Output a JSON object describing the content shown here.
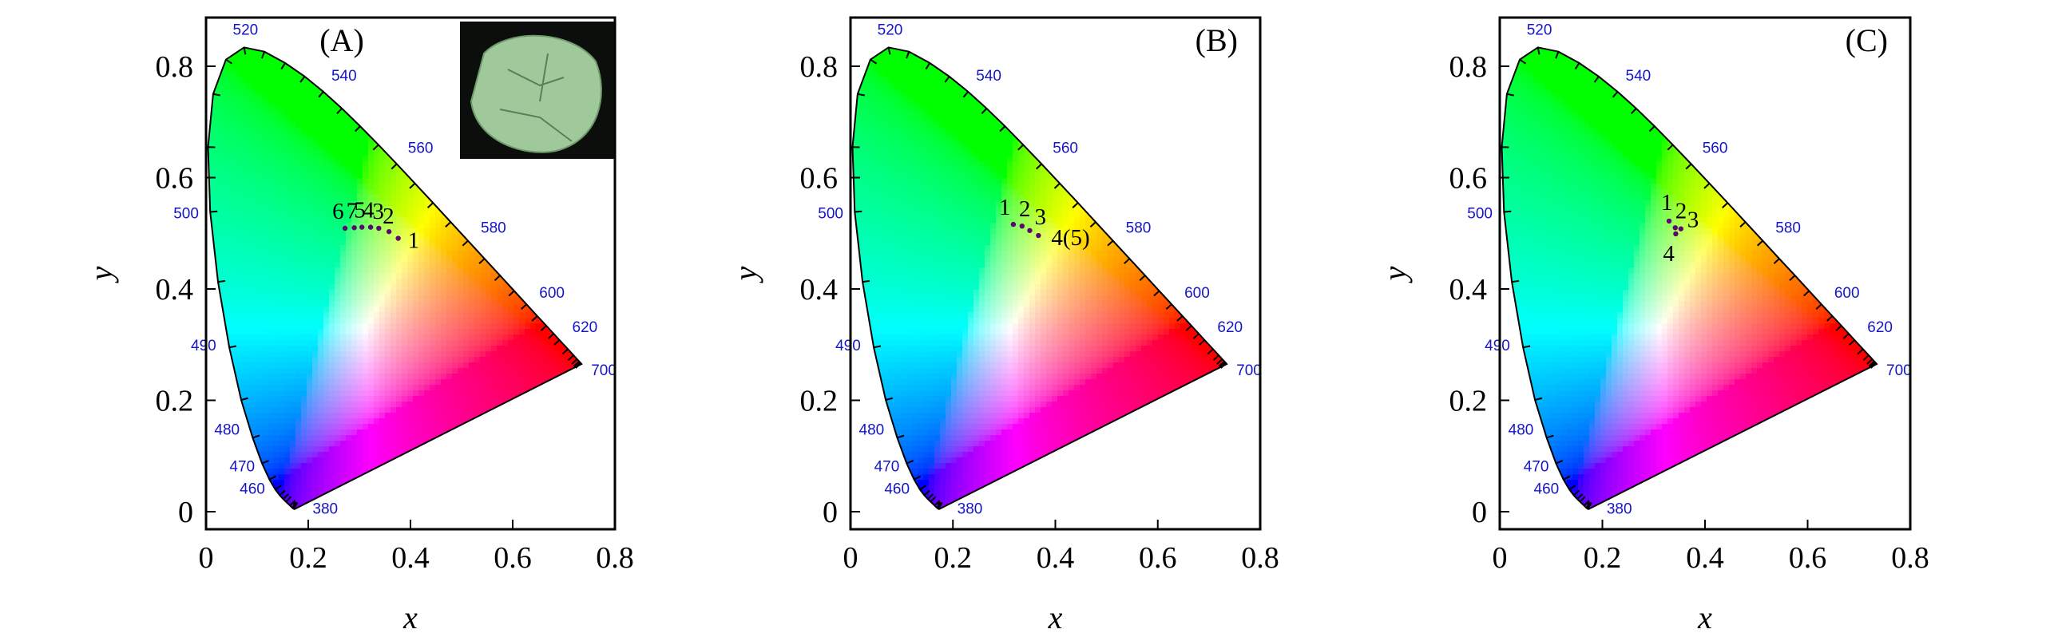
{
  "chart_data": [
    {
      "type": "scatter",
      "chart_kind": "CIE 1931 chromaticity diagram",
      "panel_label": "(A)",
      "xlabel": "x",
      "ylabel": "y",
      "xlim": [
        0,
        0.8
      ],
      "ylim": [
        0,
        0.9
      ],
      "x_ticks": [
        "0",
        "0.2",
        "0.4",
        "0.6",
        "0.8"
      ],
      "y_ticks": [
        "0",
        "0.2",
        "0.4",
        "0.6",
        "0.8"
      ],
      "wavelength_labels": [
        "380",
        "460",
        "470",
        "480",
        "490",
        "500",
        "520",
        "540",
        "560",
        "580",
        "600",
        "620",
        "700"
      ],
      "inset": "photo of green powder sample (top-right)",
      "points": [
        {
          "label": "1",
          "x": 0.376,
          "y": 0.491
        },
        {
          "label": "2",
          "x": 0.358,
          "y": 0.503
        },
        {
          "label": "3",
          "x": 0.338,
          "y": 0.509
        },
        {
          "label": "4",
          "x": 0.322,
          "y": 0.511
        },
        {
          "label": "5",
          "x": 0.305,
          "y": 0.511
        },
        {
          "label": "7",
          "x": 0.29,
          "y": 0.51
        },
        {
          "label": "6",
          "x": 0.272,
          "y": 0.509
        }
      ]
    },
    {
      "type": "scatter",
      "chart_kind": "CIE 1931 chromaticity diagram",
      "panel_label": "(B)",
      "xlabel": "x",
      "ylabel": "y",
      "xlim": [
        0,
        0.8
      ],
      "ylim": [
        0,
        0.9
      ],
      "x_ticks": [
        "0",
        "0.2",
        "0.4",
        "0.6",
        "0.8"
      ],
      "y_ticks": [
        "0",
        "0.2",
        "0.4",
        "0.6",
        "0.8"
      ],
      "wavelength_labels": [
        "380",
        "460",
        "470",
        "480",
        "490",
        "500",
        "520",
        "540",
        "560",
        "580",
        "600",
        "620",
        "700"
      ],
      "points": [
        {
          "label": "1",
          "x": 0.318,
          "y": 0.516
        },
        {
          "label": "2",
          "x": 0.335,
          "y": 0.513
        },
        {
          "label": "3",
          "x": 0.35,
          "y": 0.505
        },
        {
          "label": "4(5)",
          "x": 0.367,
          "y": 0.496
        }
      ]
    },
    {
      "type": "scatter",
      "chart_kind": "CIE 1931 chromaticity diagram",
      "panel_label": "(C)",
      "xlabel": "x",
      "ylabel": "y",
      "xlim": [
        0,
        0.8
      ],
      "ylim": [
        0,
        0.9
      ],
      "x_ticks": [
        "0",
        "0.2",
        "0.4",
        "0.6",
        "0.8"
      ],
      "y_ticks": [
        "0",
        "0.2",
        "0.4",
        "0.6",
        "0.8"
      ],
      "wavelength_labels": [
        "380",
        "460",
        "470",
        "480",
        "490",
        "500",
        "520",
        "540",
        "560",
        "580",
        "600",
        "620",
        "700"
      ],
      "points": [
        {
          "label": "1",
          "x": 0.33,
          "y": 0.522
        },
        {
          "label": "2",
          "x": 0.342,
          "y": 0.51
        },
        {
          "label": "3",
          "x": 0.353,
          "y": 0.508
        },
        {
          "label": "4",
          "x": 0.343,
          "y": 0.499
        }
      ]
    }
  ]
}
